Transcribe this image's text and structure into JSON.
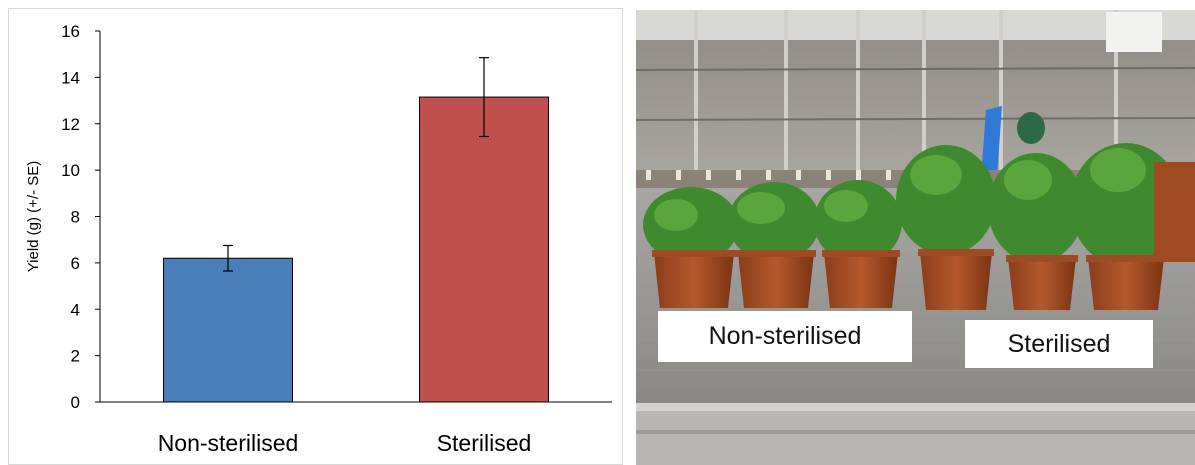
{
  "chart_data": {
    "type": "bar",
    "categories": [
      "Non-sterilised",
      "Sterilised"
    ],
    "values": [
      6.2,
      13.15
    ],
    "error_bars": [
      0.55,
      1.7
    ],
    "ylabel": "Yield (g) (+/- SE)",
    "ylim": [
      0,
      16
    ],
    "yticks": [
      0,
      2,
      4,
      6,
      8,
      10,
      12,
      14,
      16
    ],
    "colors": [
      "#4a7ebb",
      "#c0504d"
    ],
    "grid": false
  },
  "photo": {
    "labels": [
      "Non-sterilised",
      "Sterilised"
    ]
  }
}
